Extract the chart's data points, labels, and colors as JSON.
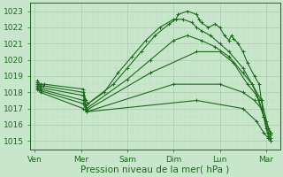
{
  "bg_color": "#c8e6cc",
  "grid_major_color": "#aaccaa",
  "grid_minor_color": "#bbddbb",
  "line_color": "#1a6b1a",
  "xlabel": "Pression niveau de la mer( hPa )",
  "xlabel_fontsize": 7.5,
  "tick_fontsize": 6.5,
  "ylim": [
    1014.5,
    1023.5
  ],
  "yticks": [
    1015,
    1016,
    1017,
    1018,
    1019,
    1020,
    1021,
    1022,
    1023
  ],
  "xtick_labels": [
    "Ven",
    "Mer",
    "Sam",
    "Dim",
    "Lun",
    "Mar"
  ],
  "xtick_positions": [
    0,
    1,
    2,
    3,
    4,
    5
  ],
  "xlim": [
    -0.1,
    5.3
  ],
  "lines": [
    {
      "x": [
        0.05,
        0.12,
        0.2,
        1.05,
        1.1,
        1.15,
        1.7,
        2.0,
        2.3,
        2.6,
        2.9,
        3.05,
        3.1,
        3.3,
        3.5,
        3.55,
        3.6,
        3.75,
        3.9,
        4.0,
        4.1,
        4.2,
        4.25,
        4.3,
        4.4,
        4.5,
        4.6,
        4.75,
        4.85,
        4.9,
        4.95,
        5.0,
        5.05,
        5.1
      ],
      "y": [
        1018.7,
        1018.5,
        1018.5,
        1018.2,
        1017.5,
        1017.3,
        1018.5,
        1019.5,
        1020.5,
        1021.5,
        1022.2,
        1022.5,
        1022.8,
        1023.0,
        1022.8,
        1022.5,
        1022.3,
        1022.0,
        1022.2,
        1022.0,
        1021.5,
        1021.2,
        1021.5,
        1021.3,
        1021.0,
        1020.5,
        1019.8,
        1019.0,
        1018.5,
        1017.5,
        1016.5,
        1015.8,
        1015.3,
        1015.0
      ]
    },
    {
      "x": [
        0.05,
        0.12,
        0.18,
        1.05,
        1.1,
        1.5,
        1.8,
        2.1,
        2.4,
        2.7,
        3.0,
        3.2,
        3.4,
        3.5,
        3.6,
        3.8,
        4.0,
        4.2,
        4.5,
        4.7,
        4.85,
        4.95,
        5.05,
        5.1
      ],
      "y": [
        1018.6,
        1018.4,
        1018.4,
        1018.0,
        1017.2,
        1018.0,
        1019.2,
        1020.2,
        1021.2,
        1022.0,
        1022.5,
        1022.5,
        1022.3,
        1022.0,
        1021.8,
        1021.5,
        1021.0,
        1020.5,
        1019.5,
        1018.5,
        1017.5,
        1016.5,
        1015.5,
        1015.2
      ]
    },
    {
      "x": [
        0.05,
        0.12,
        1.05,
        1.12,
        2.0,
        2.5,
        3.0,
        3.3,
        3.6,
        3.9,
        4.2,
        4.5,
        4.7,
        4.9,
        5.05,
        5.1
      ],
      "y": [
        1018.5,
        1018.3,
        1017.8,
        1017.0,
        1018.8,
        1020.0,
        1021.2,
        1021.5,
        1021.2,
        1020.8,
        1020.2,
        1019.2,
        1018.5,
        1017.5,
        1015.8,
        1015.5
      ]
    },
    {
      "x": [
        0.05,
        0.12,
        1.05,
        1.12,
        2.5,
        3.5,
        4.0,
        4.3,
        4.6,
        4.8,
        4.95,
        5.1
      ],
      "y": [
        1018.4,
        1018.2,
        1017.5,
        1016.9,
        1019.2,
        1020.5,
        1020.5,
        1019.8,
        1018.5,
        1017.8,
        1016.5,
        1015.5
      ]
    },
    {
      "x": [
        0.05,
        0.12,
        1.05,
        1.12,
        3.0,
        4.0,
        4.5,
        4.75,
        4.9,
        5.0,
        5.1
      ],
      "y": [
        1018.3,
        1018.1,
        1017.3,
        1016.8,
        1018.5,
        1018.5,
        1018.0,
        1017.5,
        1017.0,
        1016.2,
        1015.4
      ]
    },
    {
      "x": [
        0.05,
        0.12,
        1.05,
        1.12,
        3.5,
        4.5,
        4.8,
        4.95,
        5.05,
        5.1
      ],
      "y": [
        1018.2,
        1018.0,
        1017.0,
        1016.8,
        1017.5,
        1017.0,
        1016.2,
        1015.5,
        1015.2,
        1015.0
      ]
    }
  ]
}
